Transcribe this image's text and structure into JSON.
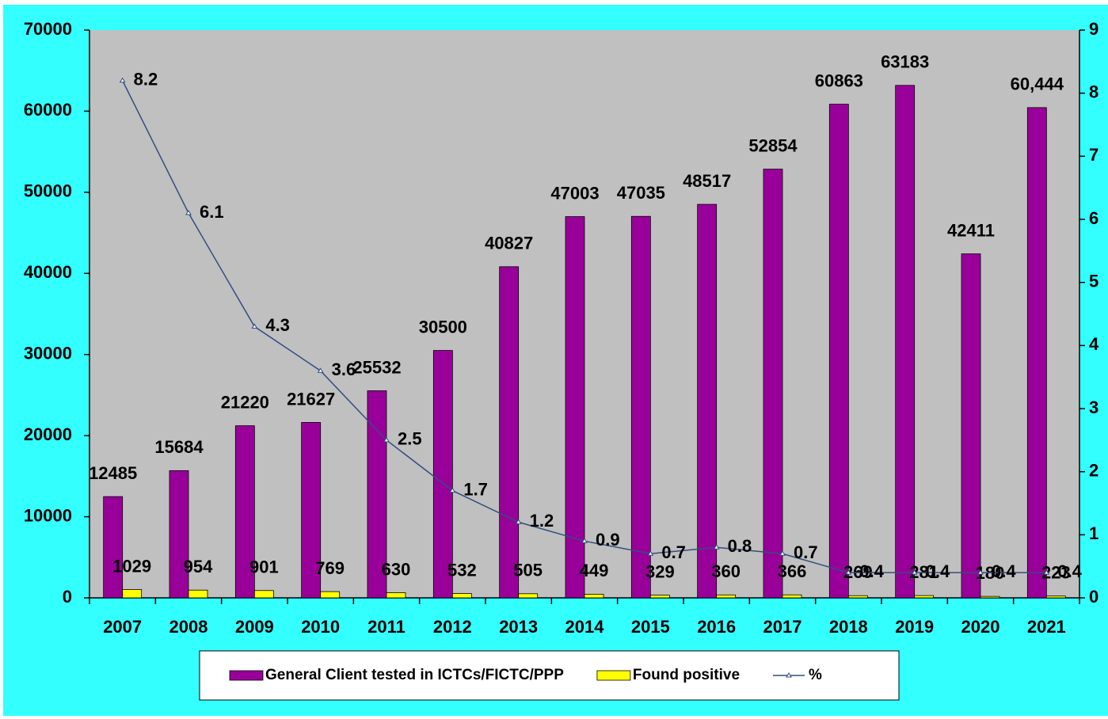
{
  "chart_data": {
    "type": "bar",
    "categories": [
      "2007",
      "2008",
      "2009",
      "2010",
      "2011",
      "2012",
      "2013",
      "2014",
      "2015",
      "2016",
      "2017",
      "2018",
      "2019",
      "2020",
      "2021"
    ],
    "series": [
      {
        "name": "General Client tested in ICTCs/FICTC/PPP",
        "color": "#990099",
        "axis": "y",
        "values": [
          12485,
          15684,
          21220,
          21627,
          25532,
          30500,
          40827,
          47003,
          47035,
          48517,
          52854,
          60863,
          63183,
          42411,
          60444
        ],
        "value_labels": [
          "12485",
          "15684",
          "21220",
          "21627",
          "25532",
          "30500",
          "40827",
          "47003",
          "47035",
          "48517",
          "52854",
          "60863",
          "63183",
          "42411",
          "60,444"
        ]
      },
      {
        "name": "Found positive",
        "color": "#ffff00",
        "axis": "y",
        "values": [
          1029,
          954,
          901,
          769,
          630,
          532,
          505,
          449,
          329,
          360,
          366,
          269,
          281,
          180,
          223
        ]
      },
      {
        "name": "%",
        "color": "#334d80",
        "axis": "y2",
        "type": "line",
        "values": [
          8.2,
          6.1,
          4.3,
          3.6,
          2.5,
          1.7,
          1.2,
          0.9,
          0.7,
          0.8,
          0.7,
          0.4,
          0.4,
          0.4,
          0.4
        ]
      }
    ],
    "ylim": [
      0,
      70000
    ],
    "yticks": [
      0,
      10000,
      20000,
      30000,
      40000,
      50000,
      60000,
      70000
    ],
    "y2lim": [
      0,
      9
    ],
    "y2ticks": [
      0,
      1,
      2,
      3,
      4,
      5,
      6,
      7,
      8,
      9
    ],
    "legend": "bottom"
  }
}
